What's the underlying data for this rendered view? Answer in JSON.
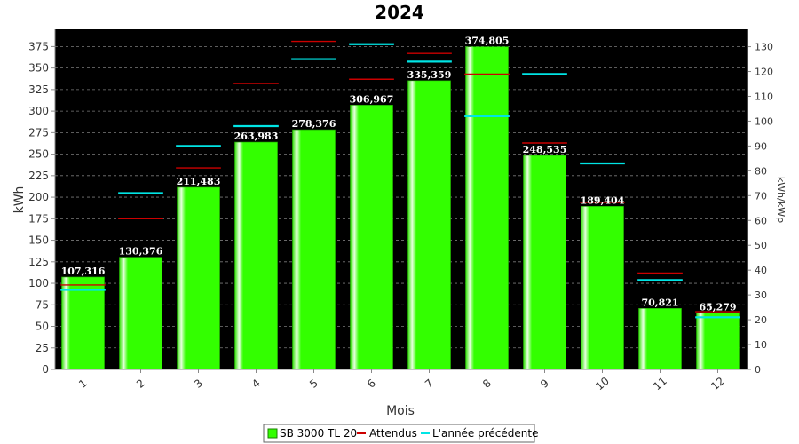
{
  "chart_data": {
    "type": "bar",
    "title": "2024",
    "xlabel": "Mois",
    "ylabel": "kWh",
    "y2label": "kWh/kWp",
    "categories": [
      "1",
      "2",
      "3",
      "4",
      "5",
      "6",
      "7",
      "8",
      "9",
      "10",
      "11",
      "12"
    ],
    "ylim": [
      0,
      395
    ],
    "y2lim": [
      0,
      137
    ],
    "yticks": [
      0,
      25,
      50,
      75,
      100,
      125,
      150,
      175,
      200,
      225,
      250,
      275,
      300,
      325,
      350,
      375
    ],
    "y2ticks": [
      0,
      10,
      20,
      30,
      40,
      50,
      60,
      70,
      80,
      90,
      100,
      110,
      120,
      130
    ],
    "grid": true,
    "legend_position": "bottom",
    "series": [
      {
        "name": "SB 3000 TL 20",
        "kind": "bar",
        "color": "#33ff00",
        "values": [
          107.316,
          130.376,
          211.483,
          263.983,
          278.376,
          306.967,
          335.359,
          374.805,
          248.535,
          189.404,
          70.821,
          65.279
        ],
        "labels": [
          "107,316",
          "130,376",
          "211,483",
          "263,983",
          "278,376",
          "306,967",
          "335,359",
          "374,805",
          "248,535",
          "189,404",
          "70,821",
          "65,279"
        ]
      },
      {
        "name": "Attendus",
        "kind": "marker",
        "axis": "left",
        "color": "#cc0000",
        "values": [
          98,
          175,
          234,
          332,
          381,
          337,
          367,
          343,
          263,
          194,
          112,
          67
        ]
      },
      {
        "name": "L'année précédente",
        "kind": "marker",
        "axis": "right",
        "color": "#00e5e5",
        "values": [
          32,
          71,
          90,
          98,
          125,
          131,
          124,
          102,
          119,
          83,
          36,
          21
        ]
      }
    ]
  }
}
